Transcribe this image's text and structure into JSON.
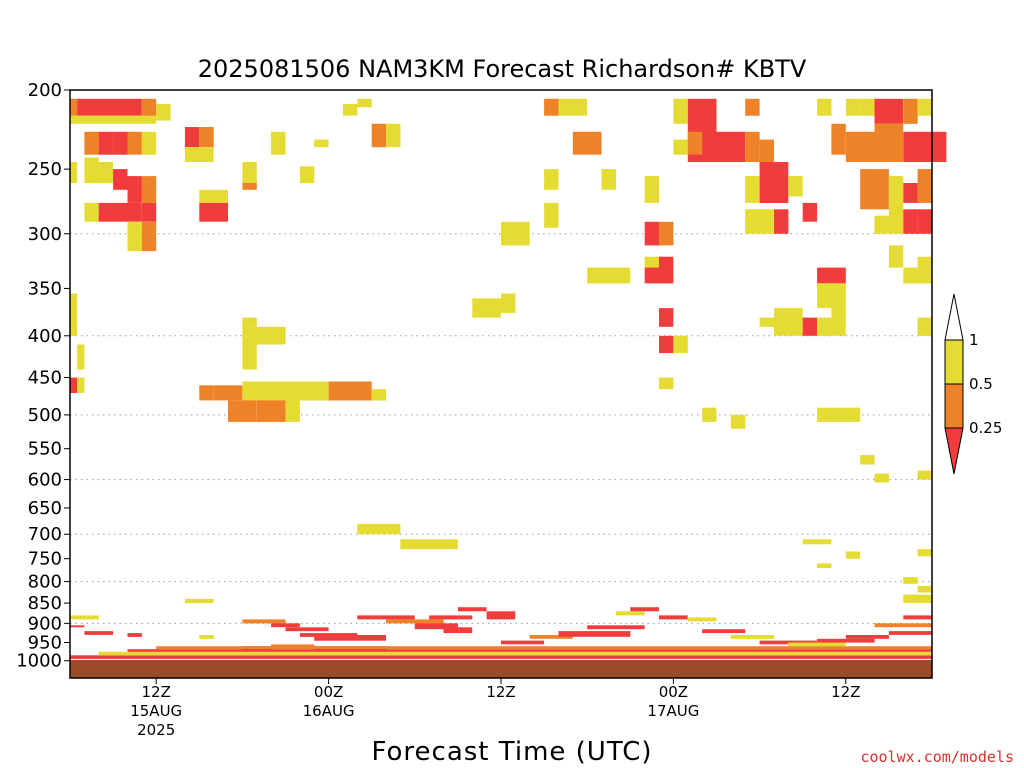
{
  "colors": {
    "lt_025": "#f03c3c",
    "r025_05": "#ee8228",
    "r05_1": "#e4dc32",
    "ground": "#9b4c28",
    "gridline": "#999999",
    "credit": "#dd3030"
  },
  "chart_data": {
    "type": "heatmap",
    "title": "2025081506 NAM3KM Forecast Richardson# KBTV",
    "xlabel": "Forecast Time (UTC)",
    "ylabel": "",
    "x_start": "2025-08-15 06Z",
    "x_end": "2025-08-17 18Z",
    "y_scale": "log",
    "ylim": [
      1050,
      200
    ],
    "y_ticks": [
      200,
      250,
      300,
      350,
      400,
      450,
      500,
      550,
      600,
      650,
      700,
      750,
      800,
      850,
      900,
      950,
      1000
    ],
    "y_ticklabels": [
      "200",
      "250",
      "300",
      "350",
      "400",
      "450",
      "500",
      "550",
      "600",
      "650",
      "700",
      "750",
      "800",
      "850",
      "900",
      "950",
      "1000"
    ],
    "dotted_gridlines_at": [
      300,
      400,
      500,
      600,
      700,
      800,
      900
    ],
    "x_ticks": [
      {
        "hour": 12,
        "line1": "12Z",
        "line2": "15AUG",
        "line3": "2025"
      },
      {
        "hour": 24,
        "line1": "00Z",
        "line2": "16AUG",
        "line3": ""
      },
      {
        "hour": 36,
        "line1": "12Z",
        "line2": "",
        "line3": ""
      },
      {
        "hour": 48,
        "line1": "00Z",
        "line2": "17AUG",
        "line3": ""
      },
      {
        "hour": 60,
        "line1": "12Z",
        "line2": "",
        "line3": ""
      }
    ],
    "legend": {
      "placement": "right",
      "labels": [
        "1",
        "0.5",
        "0.25"
      ],
      "bins": [
        "0.5-1",
        "0.25-0.5",
        "<0.25"
      ]
    },
    "cells_note": "cells: [hour_start, hour_end, p_top_hPa, p_bottom_hPa, category] with category 0 = <0.25, 1 = 0.25-0.5, 2 = 0.5-1",
    "cells": [
      [
        6,
        6.5,
        205,
        215,
        1
      ],
      [
        6,
        6.5,
        215,
        220,
        2
      ],
      [
        6.5,
        11,
        205,
        215,
        0
      ],
      [
        6.5,
        12,
        215,
        220,
        2
      ],
      [
        11,
        12,
        205,
        215,
        1
      ],
      [
        12,
        13,
        208,
        218,
        2
      ],
      [
        7,
        8,
        225,
        240,
        1
      ],
      [
        8,
        9,
        225,
        240,
        0
      ],
      [
        9,
        10,
        225,
        240,
        0
      ],
      [
        10,
        11,
        225,
        240,
        1
      ],
      [
        11,
        12,
        225,
        240,
        2
      ],
      [
        7,
        8,
        242,
        260,
        2
      ],
      [
        8,
        9,
        245,
        260,
        2
      ],
      [
        9,
        10,
        250,
        265,
        0
      ],
      [
        10,
        11,
        255,
        275,
        0
      ],
      [
        11,
        12,
        255,
        275,
        1
      ],
      [
        6,
        6.5,
        245,
        260,
        2
      ],
      [
        7,
        8,
        275,
        290,
        2
      ],
      [
        8,
        11,
        275,
        290,
        0
      ],
      [
        11,
        12,
        275,
        290,
        0
      ],
      [
        10,
        11,
        290,
        315,
        2
      ],
      [
        11,
        12,
        290,
        315,
        1
      ],
      [
        14,
        15,
        222,
        235,
        0
      ],
      [
        15,
        16,
        222,
        235,
        1
      ],
      [
        14,
        16,
        235,
        245,
        2
      ],
      [
        15,
        17,
        265,
        275,
        2
      ],
      [
        15,
        17,
        275,
        290,
        0
      ],
      [
        18,
        19,
        245,
        260,
        2
      ],
      [
        18,
        19,
        260,
        265,
        1
      ],
      [
        20,
        21,
        225,
        240,
        2
      ],
      [
        22,
        23,
        248,
        260,
        2
      ],
      [
        23,
        24,
        230,
        235,
        2
      ],
      [
        25,
        26,
        208,
        215,
        2
      ],
      [
        26,
        27,
        205,
        210,
        2
      ],
      [
        27,
        28,
        220,
        235,
        1
      ],
      [
        28,
        29,
        220,
        235,
        2
      ],
      [
        6,
        6.5,
        355,
        400,
        2
      ],
      [
        6.5,
        7,
        410,
        440,
        2
      ],
      [
        6,
        6.5,
        450,
        470,
        0
      ],
      [
        6.5,
        7,
        450,
        470,
        2
      ],
      [
        18,
        19,
        380,
        390,
        2
      ],
      [
        18,
        21,
        390,
        410,
        2
      ],
      [
        18,
        19,
        410,
        440,
        2
      ],
      [
        15,
        16,
        460,
        480,
        1
      ],
      [
        16,
        17,
        460,
        480,
        1
      ],
      [
        17,
        18,
        460,
        480,
        1
      ],
      [
        18,
        22,
        455,
        480,
        2
      ],
      [
        22,
        24,
        455,
        480,
        2
      ],
      [
        24,
        27,
        455,
        480,
        1
      ],
      [
        27,
        28,
        465,
        480,
        2
      ],
      [
        17,
        19,
        480,
        510,
        1
      ],
      [
        19,
        21,
        480,
        510,
        1
      ],
      [
        21,
        22,
        480,
        510,
        2
      ],
      [
        26,
        29,
        680,
        700,
        2
      ],
      [
        29,
        33,
        710,
        730,
        2
      ],
      [
        34,
        36,
        360,
        380,
        2
      ],
      [
        36,
        37,
        355,
        375,
        2
      ],
      [
        36,
        38,
        290,
        310,
        2
      ],
      [
        39,
        40,
        205,
        215,
        1
      ],
      [
        40,
        41,
        205,
        215,
        2
      ],
      [
        41,
        42,
        205,
        215,
        2
      ],
      [
        39,
        40,
        250,
        265,
        2
      ],
      [
        39,
        40,
        275,
        295,
        2
      ],
      [
        41,
        43,
        225,
        240,
        1
      ],
      [
        42,
        44,
        330,
        345,
        2
      ],
      [
        44,
        45,
        330,
        345,
        2
      ],
      [
        43,
        44,
        250,
        265,
        2
      ],
      [
        46,
        47,
        255,
        275,
        2
      ],
      [
        46,
        47,
        290,
        310,
        0
      ],
      [
        47,
        48,
        290,
        310,
        1
      ],
      [
        46,
        47,
        320,
        340,
        2
      ],
      [
        46,
        47,
        330,
        345,
        0
      ],
      [
        47,
        48,
        320,
        345,
        0
      ],
      [
        47,
        48,
        370,
        390,
        0
      ],
      [
        47,
        48,
        400,
        420,
        0
      ],
      [
        48,
        49,
        400,
        420,
        2
      ],
      [
        47,
        48,
        450,
        465,
        2
      ],
      [
        48,
        49,
        205,
        220,
        2
      ],
      [
        49,
        51,
        205,
        245,
        0
      ],
      [
        51,
        53,
        225,
        245,
        0
      ],
      [
        48,
        49,
        230,
        240,
        2
      ],
      [
        49,
        50,
        225,
        240,
        1
      ],
      [
        53,
        54,
        205,
        215,
        1
      ],
      [
        53,
        54,
        225,
        245,
        1
      ],
      [
        54,
        55,
        230,
        250,
        1
      ],
      [
        53,
        54,
        255,
        275,
        2
      ],
      [
        54,
        56,
        245,
        275,
        0
      ],
      [
        53,
        55,
        280,
        300,
        2
      ],
      [
        55,
        56,
        280,
        300,
        0
      ],
      [
        54,
        55,
        380,
        390,
        2
      ],
      [
        55,
        57,
        370,
        400,
        2
      ],
      [
        57,
        58,
        380,
        400,
        0
      ],
      [
        58,
        59,
        380,
        400,
        2
      ],
      [
        58,
        60,
        330,
        345,
        0
      ],
      [
        58,
        60,
        345,
        370,
        2
      ],
      [
        59,
        60,
        370,
        400,
        2
      ],
      [
        56,
        57,
        255,
        270,
        2
      ],
      [
        57,
        58,
        275,
        290,
        0
      ],
      [
        58,
        59,
        205,
        215,
        2
      ],
      [
        59,
        60,
        220,
        240,
        1
      ],
      [
        60,
        61,
        205,
        215,
        2
      ],
      [
        61,
        62,
        205,
        215,
        2
      ],
      [
        62,
        64,
        205,
        220,
        0
      ],
      [
        64,
        65,
        205,
        220,
        1
      ],
      [
        65,
        66,
        205,
        215,
        2
      ],
      [
        60,
        62,
        225,
        245,
        1
      ],
      [
        62,
        64,
        220,
        245,
        1
      ],
      [
        64,
        66,
        225,
        245,
        0
      ],
      [
        66,
        67,
        225,
        245,
        0
      ],
      [
        61,
        62,
        250,
        280,
        1
      ],
      [
        62,
        63,
        250,
        280,
        1
      ],
      [
        63,
        64,
        255,
        275,
        2
      ],
      [
        64,
        65,
        260,
        275,
        0
      ],
      [
        65,
        66,
        250,
        275,
        1
      ],
      [
        62,
        63,
        285,
        300,
        2
      ],
      [
        63,
        64,
        275,
        300,
        2
      ],
      [
        64,
        65,
        280,
        300,
        0
      ],
      [
        65,
        66,
        280,
        300,
        0
      ],
      [
        63,
        64,
        310,
        330,
        2
      ],
      [
        64,
        65,
        330,
        345,
        2
      ],
      [
        65,
        66,
        320,
        345,
        2
      ],
      [
        65,
        66,
        380,
        400,
        2
      ],
      [
        58,
        61,
        490,
        510,
        2
      ],
      [
        50,
        51,
        490,
        510,
        2
      ],
      [
        52,
        53,
        500,
        520,
        2
      ],
      [
        61,
        62,
        560,
        575,
        2
      ],
      [
        62,
        63,
        590,
        605,
        2
      ],
      [
        65,
        66,
        585,
        600,
        2
      ],
      [
        57,
        59,
        710,
        720,
        2
      ],
      [
        58,
        59,
        760,
        770,
        2
      ],
      [
        60,
        61,
        735,
        750,
        2
      ],
      [
        65,
        66,
        730,
        745,
        2
      ],
      [
        64,
        65,
        790,
        805,
        2
      ],
      [
        65,
        66,
        810,
        825,
        2
      ],
      [
        64,
        66,
        830,
        850,
        2
      ],
      [
        6,
        8,
        880,
        890,
        2
      ],
      [
        6,
        7,
        905,
        910,
        0
      ],
      [
        7,
        9,
        920,
        930,
        0
      ],
      [
        10,
        11,
        925,
        935,
        0
      ],
      [
        14,
        16,
        840,
        850,
        2
      ],
      [
        15,
        16,
        930,
        940,
        2
      ],
      [
        18,
        21,
        890,
        900,
        1
      ],
      [
        20,
        22,
        900,
        910,
        0
      ],
      [
        21,
        24,
        910,
        920,
        0
      ],
      [
        22,
        26,
        925,
        935,
        0
      ],
      [
        23,
        28,
        930,
        945,
        0
      ],
      [
        18,
        20,
        960,
        970,
        0
      ],
      [
        20,
        23,
        955,
        965,
        1
      ],
      [
        23,
        28,
        960,
        975,
        0
      ],
      [
        26,
        30,
        880,
        890,
        0
      ],
      [
        28,
        32,
        890,
        900,
        1
      ],
      [
        30,
        33,
        900,
        915,
        0
      ],
      [
        32,
        34,
        910,
        925,
        0
      ],
      [
        31,
        34,
        880,
        890,
        0
      ],
      [
        33,
        35,
        860,
        870,
        0
      ],
      [
        35,
        37,
        870,
        890,
        0
      ],
      [
        36,
        39,
        945,
        955,
        0
      ],
      [
        38,
        41,
        930,
        940,
        1
      ],
      [
        40,
        45,
        920,
        935,
        0
      ],
      [
        42,
        46,
        905,
        915,
        0
      ],
      [
        44,
        46,
        870,
        880,
        2
      ],
      [
        45,
        47,
        860,
        870,
        0
      ],
      [
        47,
        49,
        880,
        890,
        0
      ],
      [
        49,
        51,
        885,
        895,
        2
      ],
      [
        50,
        53,
        915,
        925,
        0
      ],
      [
        52,
        55,
        930,
        940,
        2
      ],
      [
        54,
        58,
        945,
        955,
        0
      ],
      [
        56,
        60,
        950,
        960,
        2
      ],
      [
        58,
        62,
        940,
        950,
        0
      ],
      [
        60,
        63,
        930,
        940,
        0
      ],
      [
        63,
        66,
        920,
        930,
        0
      ],
      [
        62,
        66,
        900,
        910,
        1
      ],
      [
        64,
        66,
        880,
        890,
        0
      ],
      [
        6,
        66,
        985,
        995,
        0
      ],
      [
        8,
        66,
        975,
        985,
        2
      ],
      [
        10,
        66,
        968,
        975,
        0
      ],
      [
        12,
        66,
        960,
        968,
        1
      ]
    ]
  },
  "footer": {
    "credit": "coolwx.com/models"
  }
}
